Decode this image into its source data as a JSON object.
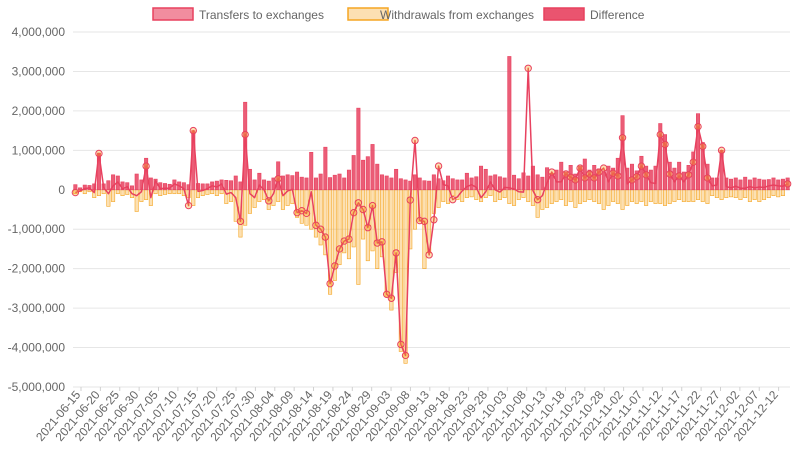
{
  "chart_data": {
    "type": "bar",
    "title": "",
    "xlabel": "",
    "ylabel": "",
    "ylim": [
      -5000000,
      4000000
    ],
    "y_ticks": [
      "4,000,000",
      "3,000,000",
      "2,000,000",
      "1,000,000",
      "0",
      "-1,000,000",
      "-2,000,000",
      "-3,000,000",
      "-4,000,000",
      "-5,000,000"
    ],
    "grid": true,
    "legend_position": "top",
    "x_tick_labels": [
      "2021-06-15",
      "2021-06-20",
      "2021-06-25",
      "2021-06-30",
      "2021-07-05",
      "2021-07-10",
      "2021-07-15",
      "2021-07-20",
      "2021-07-25",
      "2021-07-30",
      "2021-08-04",
      "2021-08-09",
      "2021-08-14",
      "2021-08-19",
      "2021-08-24",
      "2021-08-29",
      "2021-09-03",
      "2021-09-08",
      "2021-09-13",
      "2021-09-18",
      "2021-09-23",
      "2021-09-28",
      "2021-10-03",
      "2021-10-08",
      "2021-10-13",
      "2021-10-18",
      "2021-10-23",
      "2021-10-28",
      "2021-11-02",
      "2021-11-07",
      "2021-11-12",
      "2021-11-17",
      "2021-11-22",
      "2021-11-27",
      "2021-12-02",
      "2021-12-07",
      "2021-12-12"
    ],
    "series": [
      {
        "name": "Transfers to exchanges",
        "kind": "bar",
        "color": "#e8415f",
        "values": [
          130000,
          50000,
          120000,
          110000,
          150000,
          930000,
          150000,
          230000,
          380000,
          350000,
          200000,
          180000,
          100000,
          400000,
          250000,
          800000,
          300000,
          270000,
          180000,
          160000,
          140000,
          250000,
          200000,
          180000,
          130000,
          1500000,
          160000,
          150000,
          150000,
          200000,
          220000,
          250000,
          240000,
          230000,
          350000,
          200000,
          2220000,
          520000,
          250000,
          420000,
          250000,
          220000,
          300000,
          710000,
          350000,
          380000,
          360000,
          450000,
          320000,
          300000,
          950000,
          300000,
          400000,
          1080000,
          310000,
          370000,
          400000,
          300000,
          500000,
          870000,
          2070000,
          750000,
          840000,
          1150000,
          650000,
          380000,
          350000,
          300000,
          520000,
          280000,
          250000,
          220000,
          380000,
          300000,
          230000,
          220000,
          380000,
          280000,
          230000,
          350000,
          280000,
          250000,
          250000,
          420000,
          300000,
          330000,
          600000,
          520000,
          350000,
          380000,
          330000,
          300000,
          3380000,
          370000,
          280000,
          430000,
          350000,
          600000,
          380000,
          320000,
          560000,
          420000,
          500000,
          700000,
          450000,
          620000,
          400000,
          600000,
          780000,
          500000,
          620000,
          530000,
          450000,
          600000,
          550000,
          800000,
          1880000,
          550000,
          650000,
          480000,
          850000,
          600000,
          500000,
          600000,
          1680000,
          1400000,
          700000,
          550000,
          700000,
          450000,
          620000,
          960000,
          1930000,
          1200000,
          650000,
          300000,
          300000,
          1000000,
          300000,
          270000,
          300000,
          250000,
          320000,
          250000,
          300000,
          270000,
          250000,
          260000,
          300000,
          250000,
          270000,
          300000
        ]
      },
      {
        "name": "Withdrawals from exchanges",
        "kind": "bar",
        "color": "#f5a623",
        "values": [
          -100000,
          -50000,
          -100000,
          -50000,
          -200000,
          -150000,
          -100000,
          -420000,
          -300000,
          -100000,
          -150000,
          -120000,
          -200000,
          -550000,
          -300000,
          -250000,
          -400000,
          -100000,
          -150000,
          -120000,
          -100000,
          -100000,
          -100000,
          -150000,
          -200000,
          -400000,
          -200000,
          -150000,
          -120000,
          -100000,
          -150000,
          -100000,
          -350000,
          -300000,
          -800000,
          -1200000,
          -900000,
          -600000,
          -450000,
          -300000,
          -250000,
          -500000,
          -400000,
          -300000,
          -500000,
          -400000,
          -350000,
          -700000,
          -850000,
          -900000,
          -1000000,
          -1200000,
          -1400000,
          -1650000,
          -2650000,
          -2300000,
          -1900000,
          -1600000,
          -1750000,
          -1450000,
          -2400000,
          -1250000,
          -1800000,
          -1550000,
          -2000000,
          -1700000,
          -2700000,
          -3050000,
          -2100000,
          -4100000,
          -4400000,
          -1500000,
          -1000000,
          -800000,
          -2000000,
          -1600000,
          -600000,
          -450000,
          -300000,
          -350000,
          -150000,
          -250000,
          -300000,
          -200000,
          -180000,
          -250000,
          -300000,
          -200000,
          -150000,
          -300000,
          -250000,
          -200000,
          -350000,
          -400000,
          -250000,
          -200000,
          -300000,
          -400000,
          -700000,
          -500000,
          -450000,
          -350000,
          -300000,
          -250000,
          -400000,
          -300000,
          -450000,
          -350000,
          -300000,
          -250000,
          -300000,
          -350000,
          -500000,
          -400000,
          -300000,
          -350000,
          -500000,
          -400000,
          -300000,
          -350000,
          -300000,
          -400000,
          -300000,
          -350000,
          -350000,
          -400000,
          -350000,
          -300000,
          -250000,
          -300000,
          -300000,
          -300000,
          -250000,
          -300000,
          -350000,
          -150000,
          -200000,
          -250000,
          -200000,
          -180000,
          -200000,
          -250000,
          -200000,
          -300000,
          -250000,
          -300000,
          -250000,
          -200000,
          -150000,
          -180000,
          -150000
        ]
      },
      {
        "name": "Difference",
        "kind": "line",
        "color": "#e8415f",
        "values": [
          -70000,
          -30000,
          30000,
          50000,
          -70000,
          920000,
          60000,
          -100000,
          100000,
          200000,
          20000,
          80000,
          -100000,
          -150000,
          -50000,
          600000,
          -200000,
          230000,
          30000,
          40000,
          40000,
          150000,
          100000,
          30000,
          -400000,
          1500000,
          -40000,
          -20000,
          30000,
          100000,
          70000,
          150000,
          -110000,
          -70000,
          -200000,
          -800000,
          1400000,
          -100000,
          -200000,
          120000,
          0,
          -280000,
          -100000,
          280000,
          -150000,
          -30000,
          10000,
          -580000,
          -530000,
          -600000,
          -50000,
          -900000,
          -1000000,
          -1200000,
          -2380000,
          -1930000,
          -1500000,
          -1300000,
          -1250000,
          -580000,
          -330000,
          -500000,
          -960000,
          -400000,
          -1350000,
          -1320000,
          -2650000,
          -2750000,
          -1600000,
          -3920000,
          -4200000,
          -260000,
          1250000,
          -780000,
          -800000,
          -1650000,
          -760000,
          600000,
          130000,
          100000,
          -250000,
          -180000,
          -30000,
          80000,
          130000,
          60000,
          -200000,
          -50000,
          200000,
          0,
          -60000,
          60000,
          50000,
          20000,
          -50000,
          -60000,
          3080000,
          -20000,
          -250000,
          -150000,
          180000,
          450000,
          200000,
          200000,
          400000,
          320000,
          250000,
          550000,
          300000,
          400000,
          300000,
          450000,
          550000,
          200000,
          420000,
          350000,
          1320000,
          150000,
          250000,
          330000,
          600000,
          380000,
          180000,
          160000,
          1400000,
          1150000,
          400000,
          200000,
          350000,
          200000,
          380000,
          700000,
          1600000,
          1100000,
          300000,
          100000,
          120000,
          1000000,
          80000,
          50000,
          90000,
          40000,
          40000,
          80000,
          50000,
          70000,
          60000,
          100000,
          120000,
          100000,
          90000,
          150000
        ]
      }
    ],
    "x_categories_note": ""
  }
}
